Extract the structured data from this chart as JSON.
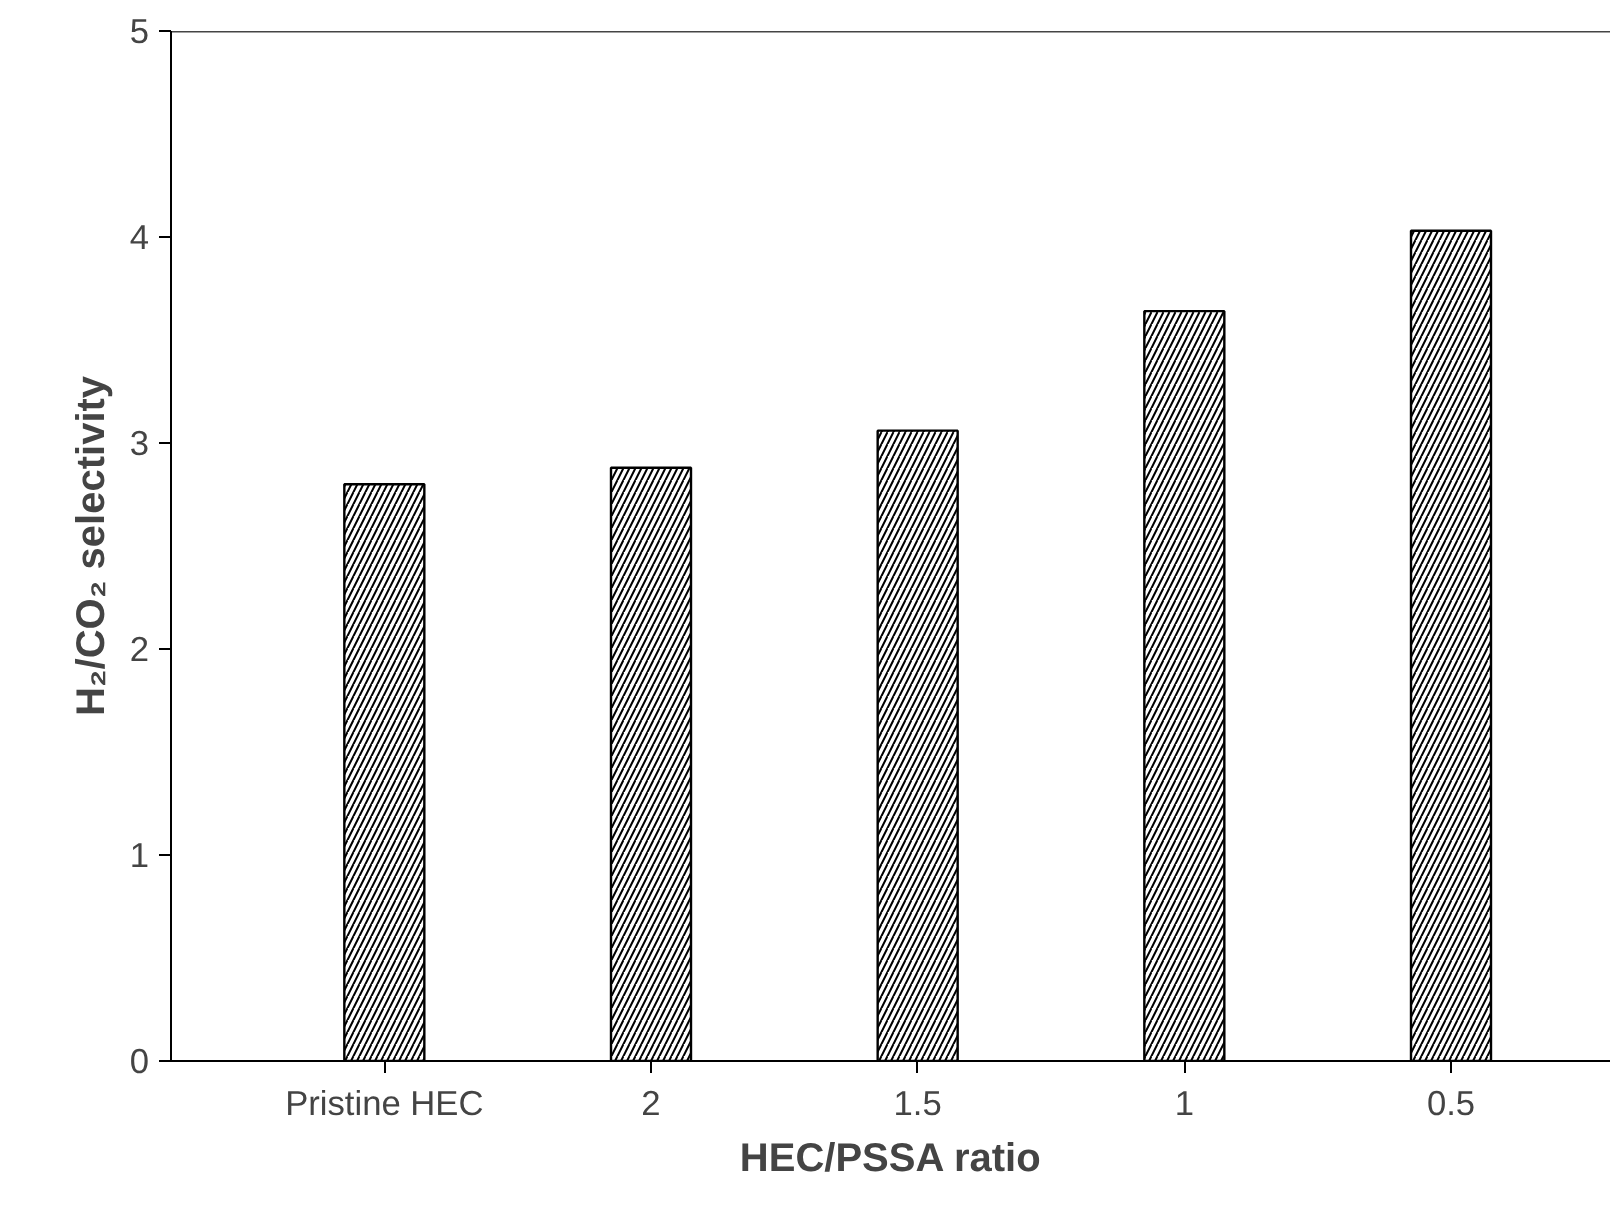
{
  "chart_data": {
    "type": "bar",
    "xlabel": "HEC/PSSA ratio",
    "ylabel": "H₂/CO₂ selectivity",
    "categories": [
      "Pristine HEC",
      "2",
      "1.5",
      "1",
      "0.5"
    ],
    "values": [
      2.8,
      2.88,
      3.06,
      3.64,
      4.03
    ],
    "color": "#ffffff",
    "ylim": [
      0,
      5
    ],
    "yticks": [
      0,
      1,
      2,
      3,
      4,
      5
    ],
    "grid": false
  }
}
